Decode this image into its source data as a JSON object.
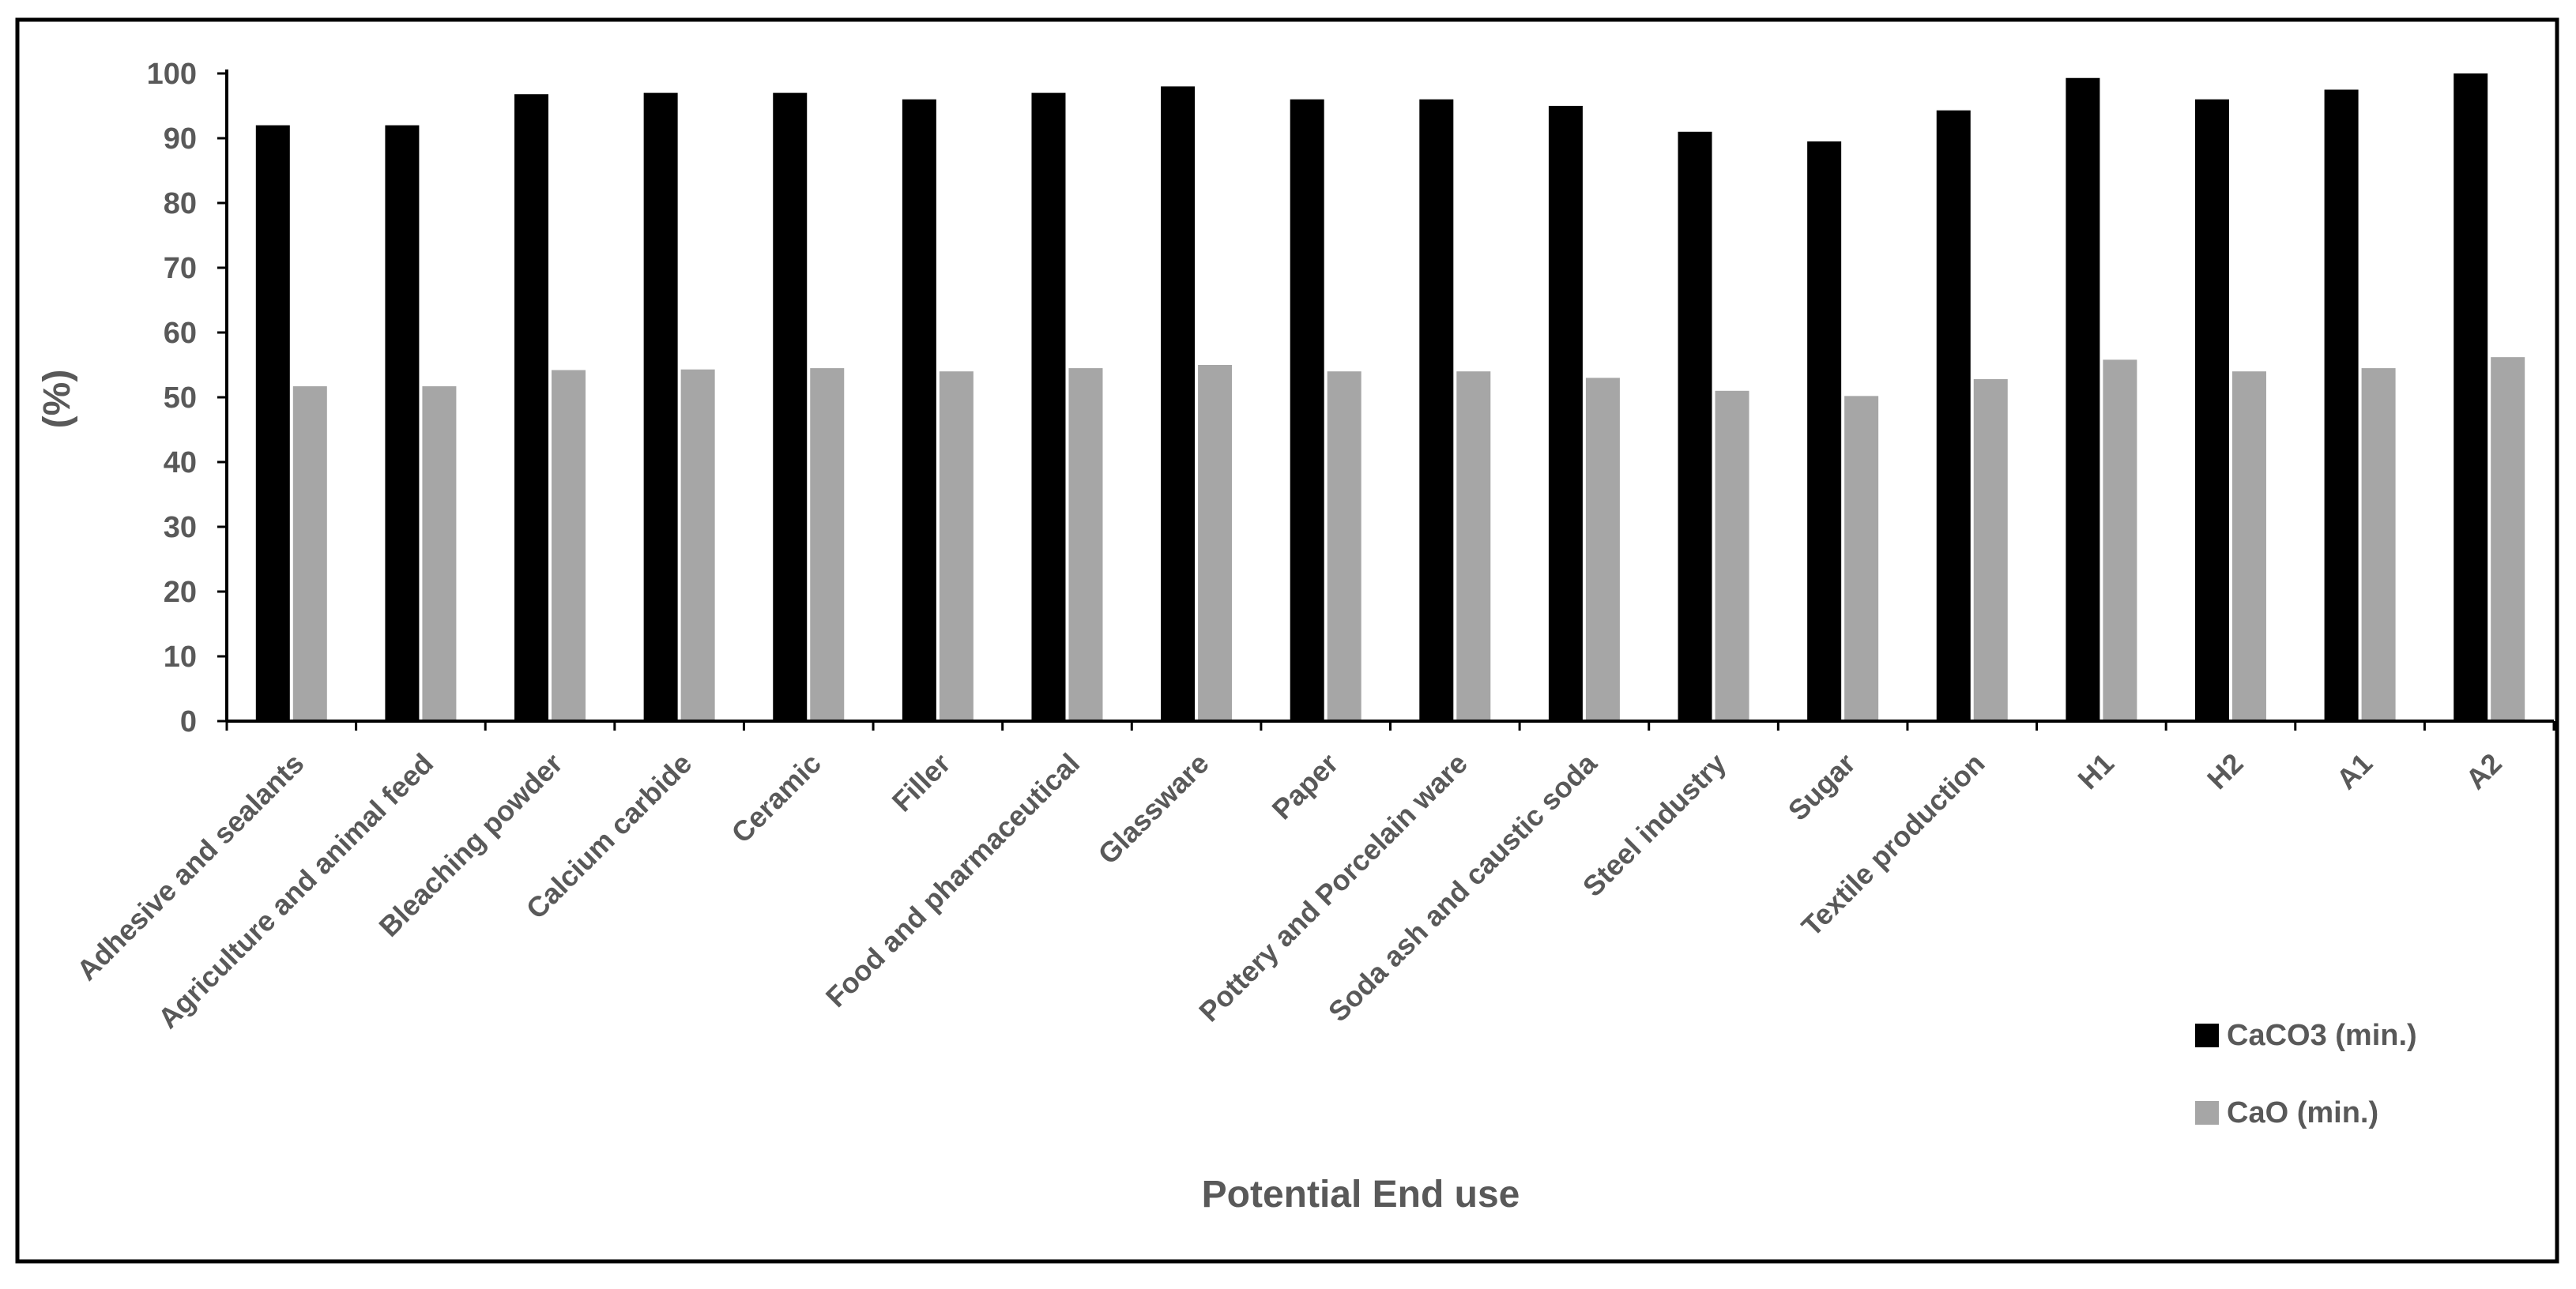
{
  "chart_data": {
    "type": "bar",
    "title": "",
    "xlabel": "Potential End use",
    "ylabel": "(%)",
    "ylim": [
      0,
      100
    ],
    "yticks": [
      0,
      10,
      20,
      30,
      40,
      50,
      60,
      70,
      80,
      90,
      100
    ],
    "grid": false,
    "legend_position": "bottom-right",
    "categories": [
      "Adhesive and sealants",
      "Agriculture and animal feed",
      "Bleaching powder",
      "Calcium carbide",
      "Ceramic",
      "Filler",
      "Food and pharmaceutical",
      "Glassware",
      "Paper",
      "Pottery and Porcelain ware",
      "Soda ash and caustic soda",
      "Steel industry",
      "Sugar",
      "Textile production",
      "H1",
      "H2",
      "A1",
      "A2"
    ],
    "series": [
      {
        "name": "CaCO3 (min.)",
        "color": "#000000",
        "values": [
          92,
          92,
          96.8,
          97,
          97,
          96,
          97,
          98,
          96,
          96,
          95,
          91,
          89.5,
          94.3,
          99.3,
          96,
          97.5,
          100
        ]
      },
      {
        "name": "CaO (min.)",
        "color": "#a6a6a6",
        "values": [
          51.7,
          51.7,
          54.2,
          54.3,
          54.5,
          54,
          54.5,
          55,
          54,
          54,
          53,
          51,
          50.2,
          52.8,
          55.8,
          54,
          54.5,
          56.2
        ]
      }
    ]
  }
}
